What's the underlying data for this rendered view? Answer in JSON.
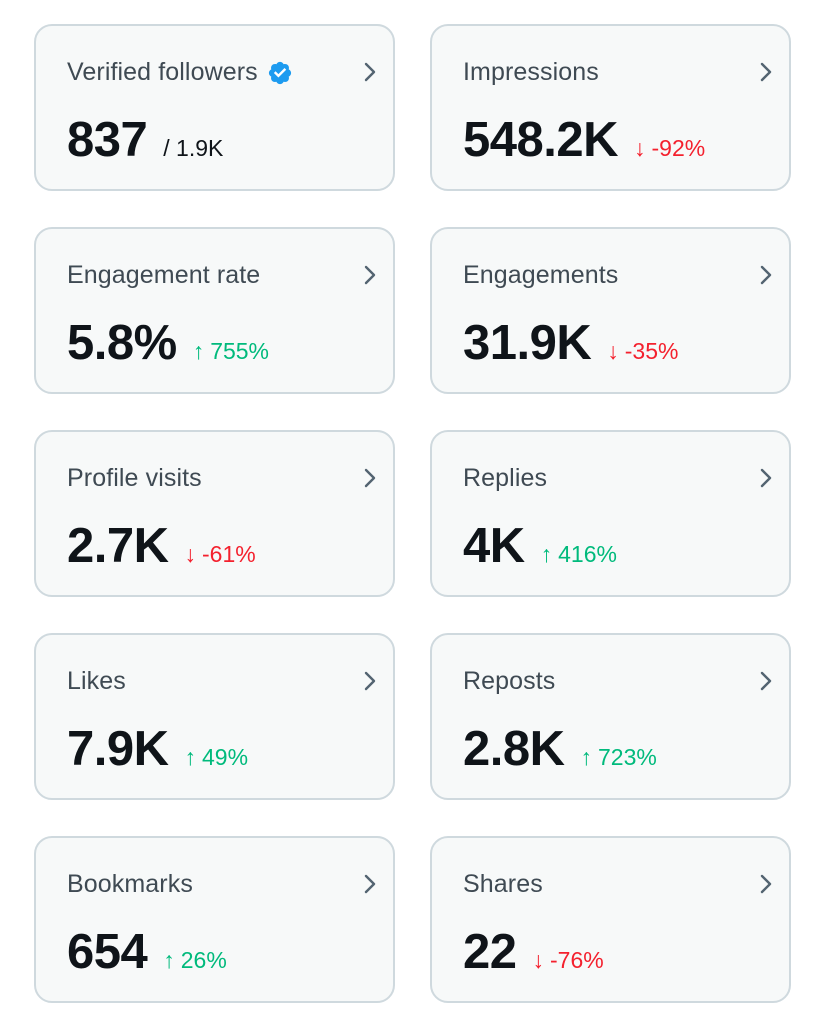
{
  "cards": [
    {
      "id": "verified-followers",
      "label": "Verified followers",
      "value": "837",
      "sub": "/ 1.9K",
      "verified": true
    },
    {
      "id": "impressions",
      "label": "Impressions",
      "value": "548.2K",
      "arrow": "↓",
      "change": "-92%",
      "direction": "down"
    },
    {
      "id": "engagement-rate",
      "label": "Engagement rate",
      "value": "5.8%",
      "arrow": "↑",
      "change": "755%",
      "direction": "up"
    },
    {
      "id": "engagements",
      "label": "Engagements",
      "value": "31.9K",
      "arrow": "↓",
      "change": "-35%",
      "direction": "down"
    },
    {
      "id": "profile-visits",
      "label": "Profile visits",
      "value": "2.7K",
      "arrow": "↓",
      "change": "-61%",
      "direction": "down"
    },
    {
      "id": "replies",
      "label": "Replies",
      "value": "4K",
      "arrow": "↑",
      "change": "416%",
      "direction": "up"
    },
    {
      "id": "likes",
      "label": "Likes",
      "value": "7.9K",
      "arrow": "↑",
      "change": "49%",
      "direction": "up"
    },
    {
      "id": "reposts",
      "label": "Reposts",
      "value": "2.8K",
      "arrow": "↑",
      "change": "723%",
      "direction": "up"
    },
    {
      "id": "bookmarks",
      "label": "Bookmarks",
      "value": "654",
      "arrow": "↑",
      "change": "26%",
      "direction": "up"
    },
    {
      "id": "shares",
      "label": "Shares",
      "value": "22",
      "arrow": "↓",
      "change": "-76%",
      "direction": "down"
    }
  ],
  "icons": {
    "verified": "verified-badge-icon",
    "chevron": "chevron-right-icon"
  },
  "colors": {
    "card_background": "#f7f9f9",
    "card_border": "#cfd9de",
    "label": "#536471",
    "value": "#0f1419",
    "down": "#f4212e",
    "up": "#00ba7c",
    "verified": "#1d9bf0"
  }
}
